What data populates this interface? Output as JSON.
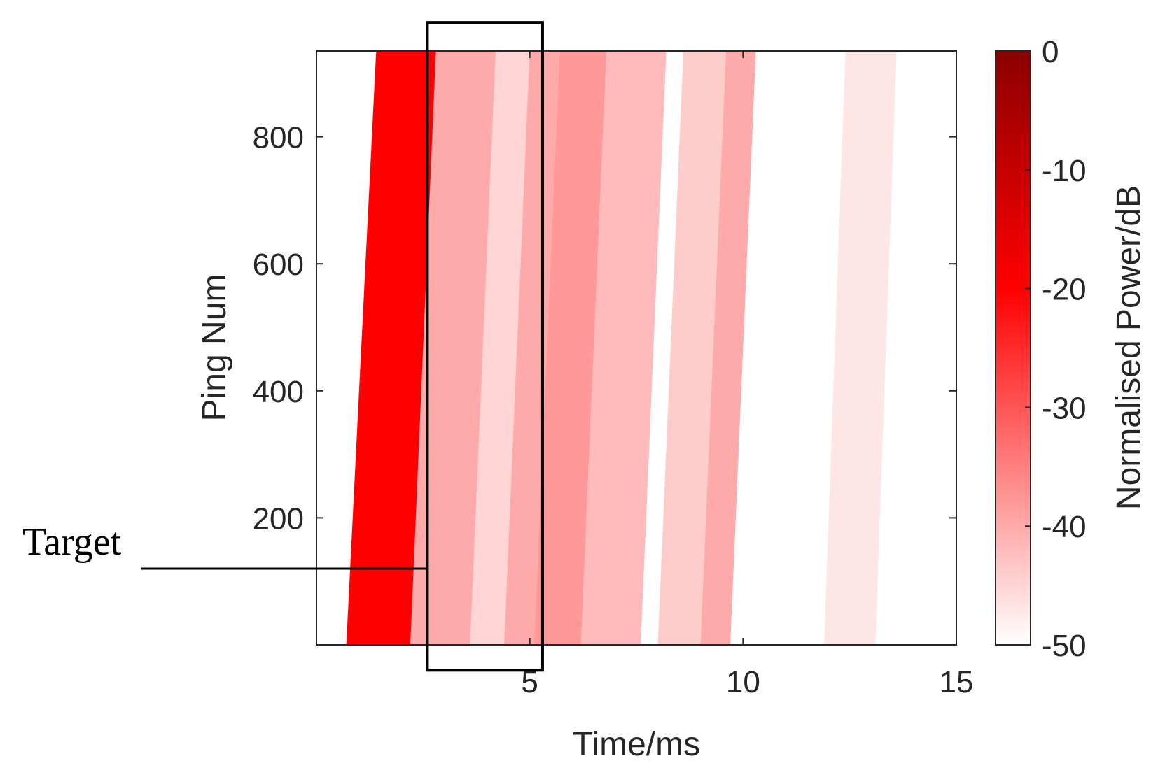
{
  "chart_data": {
    "type": "heatmap",
    "title": "",
    "xlabel": "Time/ms",
    "ylabel": "Ping Num",
    "xlim": [
      0,
      15
    ],
    "ylim": [
      0,
      935
    ],
    "x_ticks": [
      5,
      10,
      15
    ],
    "y_ticks": [
      200,
      400,
      600,
      800
    ],
    "colorbar": {
      "label": "Normalised Power/dB",
      "range": [
        -50,
        0
      ],
      "ticks": [
        0,
        -10,
        -20,
        -30,
        -40,
        -50
      ],
      "colors": [
        "#ffffff",
        "#ff0000",
        "#8b0000"
      ]
    },
    "bands": [
      {
        "x_start": 0.7,
        "x_end": 2.2,
        "drift_ms": 0.7,
        "power_db": -20
      },
      {
        "x_start": 2.2,
        "x_end": 5.1,
        "drift_ms": 0.6,
        "power_db": -40
      },
      {
        "x_start": 3.6,
        "x_end": 4.4,
        "drift_ms": 0.6,
        "power_db": -45
      },
      {
        "x_start": 5.1,
        "x_end": 6.2,
        "drift_ms": 0.6,
        "power_db": -38
      },
      {
        "x_start": 6.2,
        "x_end": 7.6,
        "drift_ms": 0.6,
        "power_db": -42
      },
      {
        "x_start": 8.0,
        "x_end": 9.0,
        "drift_ms": 0.6,
        "power_db": -44
      },
      {
        "x_start": 9.0,
        "x_end": 9.7,
        "drift_ms": 0.6,
        "power_db": -40
      },
      {
        "x_start": 11.9,
        "x_end": 13.1,
        "drift_ms": 0.5,
        "power_db": -47
      }
    ],
    "target_box": {
      "x_start": 2.6,
      "x_end": 5.3,
      "y_start": -40,
      "y_end": 980
    },
    "annotations": [
      {
        "text": "Target",
        "x": 2.6,
        "y": 120
      }
    ]
  }
}
